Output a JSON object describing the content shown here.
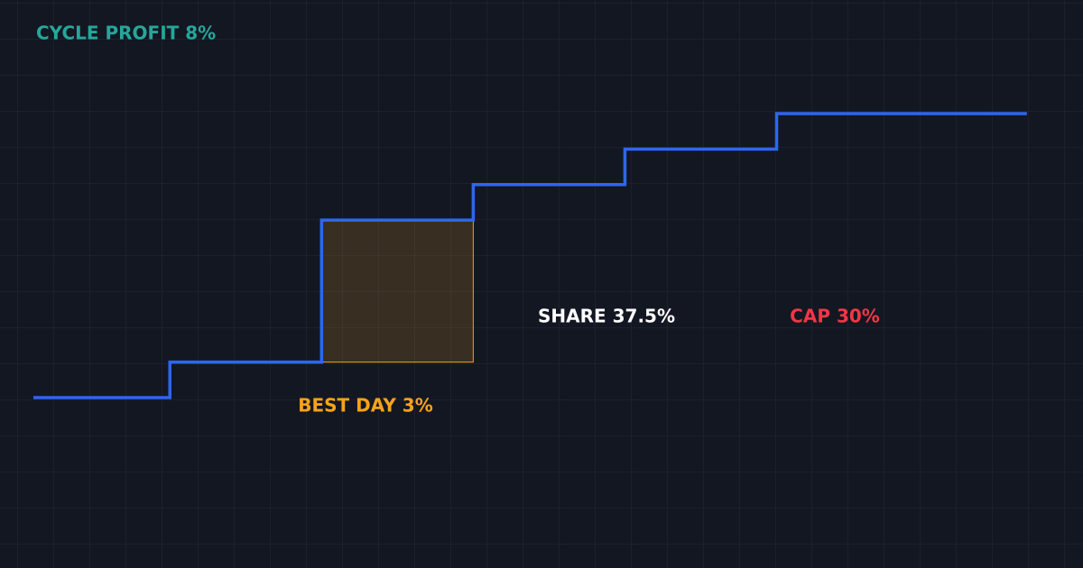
{
  "chart_data": {
    "type": "step-line",
    "x": [
      0.1,
      1,
      2,
      3,
      4,
      5,
      6.65
    ],
    "xlim": [
      -0.12,
      7.02
    ],
    "ylim": [
      -1.6,
      10.4
    ],
    "series": [
      {
        "color": "#2f66ee",
        "values": [
          2,
          2.75,
          5.75,
          6.5,
          7.25,
          8,
          8
        ]
      }
    ],
    "highlight_color": "#f5a31f",
    "background": "#131722",
    "grid": true,
    "annotations": [
      {
        "text": "CYCLE PROFIT 8%",
        "color": "#26a69a"
      },
      {
        "text": "BEST DAY 3%",
        "color": "#f7a21b"
      },
      {
        "text": "SHARE 37.5%",
        "color": "#ffffff"
      },
      {
        "text": "CAP 30%",
        "color": "#f23645"
      }
    ]
  }
}
